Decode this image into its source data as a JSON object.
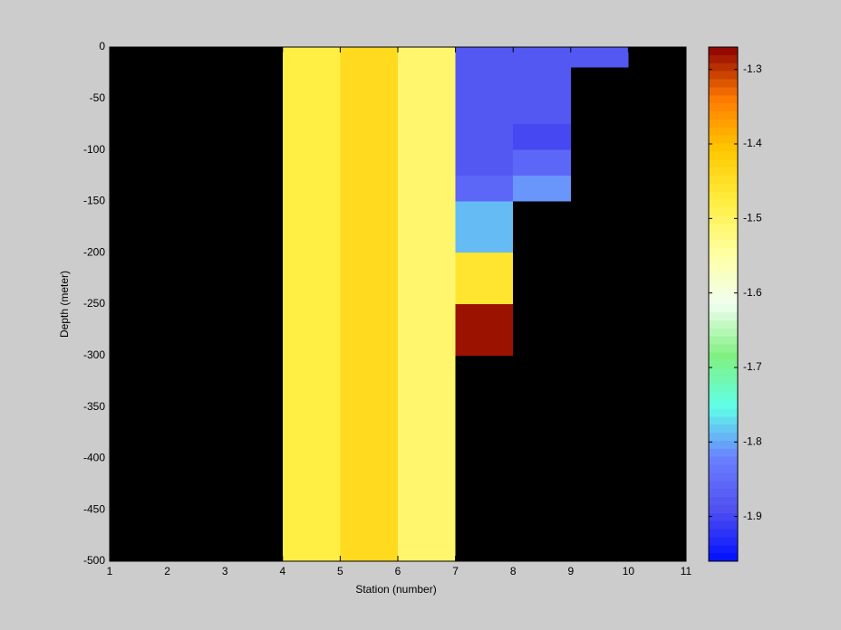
{
  "chart_data": {
    "type": "heatmap",
    "xlabel": "Station (number)",
    "ylabel": "Depth (meter)",
    "x_edges": [
      1,
      2,
      3,
      4,
      5,
      6,
      7,
      8,
      9,
      10,
      11
    ],
    "y_edges": [
      0,
      -20,
      -75,
      -100,
      -125,
      -150,
      -200,
      -250,
      -300,
      -500
    ],
    "z": [
      [
        null,
        null,
        null,
        -1.48,
        -1.44,
        -1.51,
        -1.88,
        -1.88,
        -1.88,
        null
      ],
      [
        null,
        null,
        null,
        -1.48,
        -1.44,
        -1.51,
        -1.88,
        -1.88,
        null,
        null
      ],
      [
        null,
        null,
        null,
        -1.48,
        -1.44,
        -1.51,
        -1.88,
        -1.9,
        null,
        null
      ],
      [
        null,
        null,
        null,
        -1.48,
        -1.44,
        -1.51,
        -1.88,
        -1.86,
        null,
        null
      ],
      [
        null,
        null,
        null,
        -1.48,
        -1.44,
        -1.51,
        -1.86,
        -1.81,
        null,
        null
      ],
      [
        null,
        null,
        null,
        -1.48,
        -1.44,
        -1.51,
        -1.79,
        null,
        null,
        null
      ],
      [
        null,
        null,
        null,
        -1.48,
        -1.44,
        -1.51,
        -1.46,
        null,
        null,
        null
      ],
      [
        null,
        null,
        null,
        -1.48,
        -1.44,
        -1.51,
        -1.28,
        null,
        null,
        null
      ],
      [
        null,
        null,
        null,
        -1.48,
        -1.44,
        -1.51,
        null,
        null,
        null,
        null
      ]
    ],
    "xlim": [
      1,
      11
    ],
    "xticks": [
      1,
      2,
      3,
      4,
      5,
      6,
      7,
      8,
      9,
      10,
      11
    ],
    "ylim": [
      -500,
      0
    ],
    "yticks": [
      0,
      -50,
      -100,
      -150,
      -200,
      -250,
      -300,
      -350,
      -400,
      -450,
      -500
    ],
    "clim": [
      -1.96,
      -1.27
    ],
    "cticks": [
      -1.9,
      -1.8,
      -1.7,
      -1.6,
      -1.5,
      -1.4,
      -1.3
    ],
    "nan_color": "#000000",
    "colormap": [
      "#0010ff",
      "#5050f0",
      "#6a80ff",
      "#60ffe8",
      "#80f080",
      "#f0fff0",
      "#ffffa0",
      "#ffee40",
      "#ffc800",
      "#ff7a00",
      "#8b0000"
    ]
  }
}
